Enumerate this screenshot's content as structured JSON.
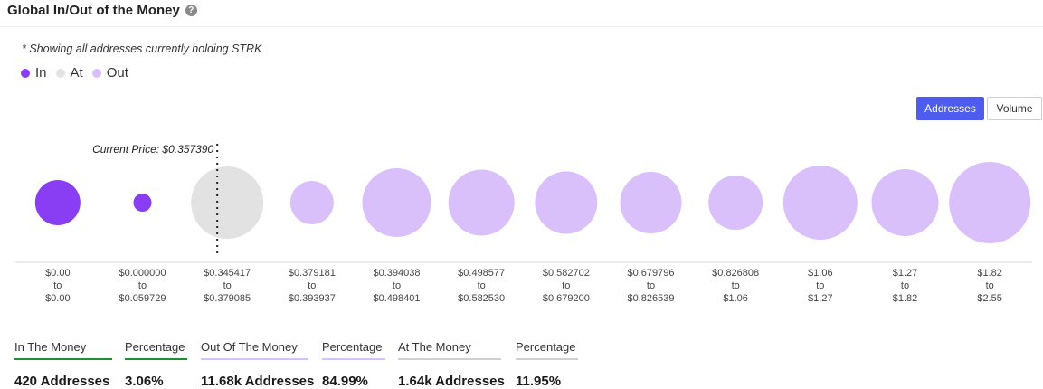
{
  "header": {
    "title": "Global In/Out of the Money",
    "help_icon": "question-circle-icon"
  },
  "note": "* Showing all addresses currently holding STRK",
  "legend": [
    {
      "label": "In",
      "color": "#8a3ef3"
    },
    {
      "label": "At",
      "color": "#e2e2e2"
    },
    {
      "label": "Out",
      "color": "#d9c0fb"
    }
  ],
  "toggle": {
    "addresses": "Addresses",
    "volume": "Volume",
    "active": "addresses"
  },
  "chart_data": {
    "type": "bubble",
    "title": "Global In/Out of the Money",
    "current_price_label": "Current Price: $0.357390",
    "current_price_bucket": 2,
    "ranges": [
      {
        "from": "$0.00",
        "to": "$0.00",
        "status": "in",
        "relative_size": 50
      },
      {
        "from": "$0.000000",
        "to": "$0.059729",
        "status": "in",
        "relative_size": 20
      },
      {
        "from": "$0.345417",
        "to": "$0.379085",
        "status": "at",
        "relative_size": 80
      },
      {
        "from": "$0.379181",
        "to": "$0.393937",
        "status": "out",
        "relative_size": 48
      },
      {
        "from": "$0.394038",
        "to": "$0.498401",
        "status": "out",
        "relative_size": 76
      },
      {
        "from": "$0.498577",
        "to": "$0.582530",
        "status": "out",
        "relative_size": 73
      },
      {
        "from": "$0.582702",
        "to": "$0.679200",
        "status": "out",
        "relative_size": 69
      },
      {
        "from": "$0.679796",
        "to": "$0.826539",
        "status": "out",
        "relative_size": 68
      },
      {
        "from": "$0.826808",
        "to": "$1.06",
        "status": "out",
        "relative_size": 60
      },
      {
        "from": "$1.06",
        "to": "$1.27",
        "status": "out",
        "relative_size": 82
      },
      {
        "from": "$1.27",
        "to": "$1.82",
        "status": "out",
        "relative_size": 74
      },
      {
        "from": "$1.82",
        "to": "$2.55",
        "status": "out",
        "relative_size": 90
      }
    ],
    "connector": "to",
    "colors": {
      "in": "#8a3ef3",
      "at": "#e2e2e2",
      "out": "#d9c0fb"
    }
  },
  "stats": [
    {
      "label": "In The Money",
      "value": "420 Addresses",
      "color": "#1f8f3a"
    },
    {
      "label": "Percentage",
      "value": "3.06%",
      "color": "#1f8f3a"
    },
    {
      "label": "Out Of The Money",
      "value": "11.68k Addresses",
      "color": "#d9c0fb"
    },
    {
      "label": "Percentage",
      "value": "84.99%",
      "color": "#d9c0fb"
    },
    {
      "label": "At The Money",
      "value": "1.64k Addresses",
      "color": "#d0d0d0"
    },
    {
      "label": "Percentage",
      "value": "11.95%",
      "color": "#d0d0d0"
    }
  ]
}
